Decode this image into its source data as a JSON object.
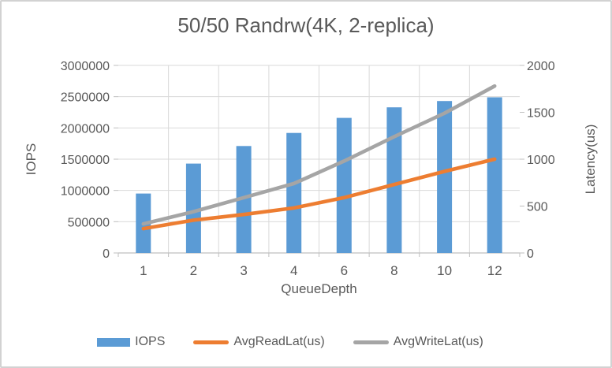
{
  "frame": {
    "background": "#FFFFFF",
    "border_color": "#D2D2D2"
  },
  "chart_data": {
    "type": "bar",
    "subtype": "combo-bar-line-dual-axis",
    "title": "50/50 Randrw(4K, 2-replica)",
    "x_axis_title": "QueueDepth",
    "categories": [
      1,
      2,
      3,
      4,
      6,
      8,
      10,
      12
    ],
    "left_axis": {
      "title": "IOPS",
      "min": 0,
      "max": 3000000,
      "step": 500000,
      "tick_labels": [
        "0",
        "500000",
        "1000000",
        "1500000",
        "2000000",
        "2500000",
        "3000000"
      ]
    },
    "right_axis": {
      "title": "Latency(us)",
      "min": 0,
      "max": 2000,
      "step": 500,
      "tick_labels": [
        "0",
        "500",
        "1000",
        "1500",
        "2000"
      ]
    },
    "series": [
      {
        "name": "IOPS",
        "type": "bar",
        "axis": "left",
        "color": "#5B9BD5",
        "values": [
          950000,
          1430000,
          1710000,
          1920000,
          2160000,
          2330000,
          2430000,
          2490000
        ]
      },
      {
        "name": "AvgReadLat(us)",
        "type": "line",
        "axis": "right",
        "color": "#ED7D31",
        "values": [
          260,
          350,
          410,
          480,
          590,
          730,
          870,
          1000
        ]
      },
      {
        "name": "AvgWriteLat(us)",
        "type": "line",
        "axis": "right",
        "color": "#A5A5A5",
        "values": [
          310,
          440,
          590,
          740,
          980,
          1240,
          1490,
          1780
        ]
      }
    ],
    "grid": true,
    "gridline_color": "#D9D9D9",
    "axis_line_color": "#BFBFBF",
    "text_color": "#595959",
    "legend_position": "bottom"
  }
}
